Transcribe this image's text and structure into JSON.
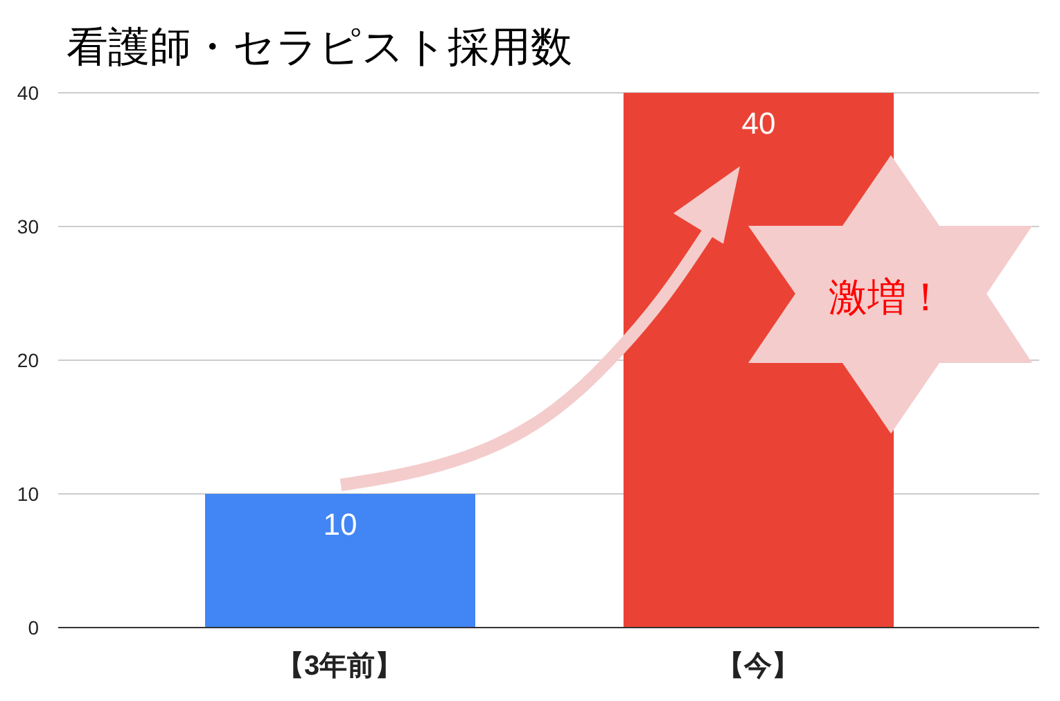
{
  "chart_data": {
    "type": "bar",
    "title": "看護師・セラピスト採用数",
    "categories": [
      "【3年前】",
      "【今】"
    ],
    "values": [
      10,
      40
    ],
    "colors": [
      "#4285f4",
      "#ea4335"
    ],
    "ylim": [
      0,
      40
    ],
    "yticks": [
      0,
      10,
      20,
      30,
      40
    ],
    "grid": "y",
    "data_labels": true,
    "annotations": [
      "激増！"
    ]
  }
}
